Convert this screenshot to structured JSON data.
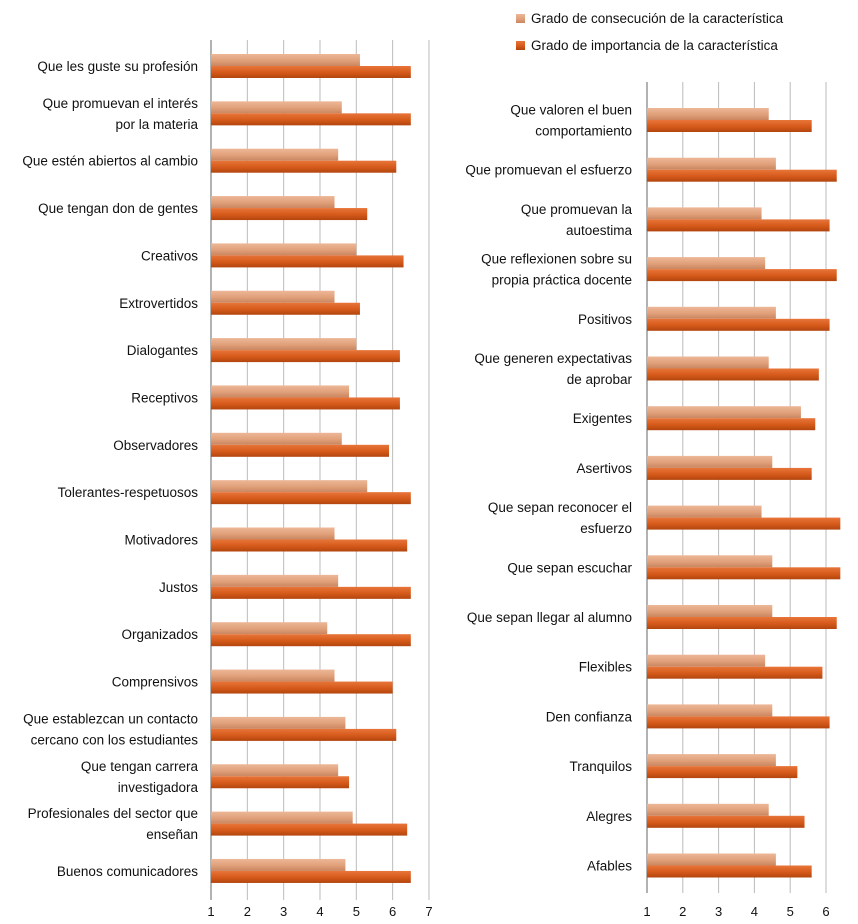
{
  "colors": {
    "achievement": "#E0A07A",
    "importance": "#D55A1A",
    "gridline": "#BBBBBB",
    "axis": "#666666"
  },
  "legend": {
    "achievement": "Grado de consecución de la característica",
    "importance": "Grado de importancia de la característica"
  },
  "chart_data": [
    {
      "type": "bar",
      "orientation": "horizontal",
      "xlim": [
        1,
        7
      ],
      "ticks": [
        1,
        2,
        3,
        4,
        5,
        6,
        7
      ],
      "grid": true,
      "series": [
        {
          "name": "Grado de consecución de la característica",
          "values": [
            5.1,
            4.6,
            4.5,
            4.4,
            5.0,
            4.4,
            5.0,
            4.8,
            4.6,
            5.3,
            4.4,
            4.5,
            4.2,
            4.4,
            4.7,
            4.5,
            4.9,
            4.7
          ]
        },
        {
          "name": "Grado de importancia de la característica",
          "values": [
            6.5,
            6.5,
            6.1,
            5.3,
            6.3,
            5.1,
            6.2,
            6.2,
            5.9,
            6.5,
            6.4,
            6.5,
            6.5,
            6.0,
            6.1,
            4.8,
            6.4,
            6.5
          ]
        }
      ],
      "categories": [
        [
          "Que les guste su profesión"
        ],
        [
          "Que promuevan el interés",
          "por la materia"
        ],
        [
          "Que estén abiertos al cambio"
        ],
        [
          "Que tengan don de gentes"
        ],
        [
          "Creativos"
        ],
        [
          "Extrovertidos"
        ],
        [
          "Dialogantes"
        ],
        [
          "Receptivos"
        ],
        [
          "Observadores"
        ],
        [
          "Tolerantes-respetuosos"
        ],
        [
          "Motivadores"
        ],
        [
          "Justos"
        ],
        [
          "Organizados"
        ],
        [
          "Comprensivos"
        ],
        [
          "Que establezcan un contacto",
          "cercano con los estudiantes"
        ],
        [
          "Que tengan carrera",
          "investigadora"
        ],
        [
          "Profesionales del sector que",
          "enseñan"
        ],
        [
          "Buenos comunicadores"
        ]
      ]
    },
    {
      "type": "bar",
      "orientation": "horizontal",
      "xlim": [
        1,
        7
      ],
      "ticks": [
        1,
        2,
        3,
        4,
        5,
        6
      ],
      "grid": true,
      "series": [
        {
          "name": "Grado de consecución de la característica",
          "values": [
            4.4,
            4.6,
            4.2,
            4.3,
            4.6,
            4.4,
            5.3,
            4.5,
            4.2,
            4.5,
            4.5,
            4.3,
            4.5,
            4.6,
            4.4,
            4.6
          ]
        },
        {
          "name": "Grado de importancia de la característica",
          "values": [
            5.6,
            6.3,
            6.1,
            6.3,
            6.1,
            5.8,
            5.7,
            5.6,
            6.4,
            6.4,
            6.3,
            5.9,
            6.1,
            5.2,
            5.4,
            5.6
          ]
        }
      ],
      "categories": [
        [
          "Que valoren el buen",
          "comportamiento"
        ],
        [
          "Que promuevan el esfuerzo"
        ],
        [
          "Que promuevan la",
          "autoestima"
        ],
        [
          "Que reflexionen sobre su",
          "propia práctica docente"
        ],
        [
          "Positivos"
        ],
        [
          "Que generen expectativas",
          "de aprobar"
        ],
        [
          "Exigentes"
        ],
        [
          "Asertivos"
        ],
        [
          "Que sepan reconocer el",
          "esfuerzo"
        ],
        [
          "Que sepan escuchar"
        ],
        [
          "Que sepan llegar al alumno"
        ],
        [
          "Flexibles"
        ],
        [
          "Den confianza"
        ],
        [
          "Tranquilos"
        ],
        [
          "Alegres"
        ],
        [
          "Afables"
        ]
      ]
    }
  ]
}
